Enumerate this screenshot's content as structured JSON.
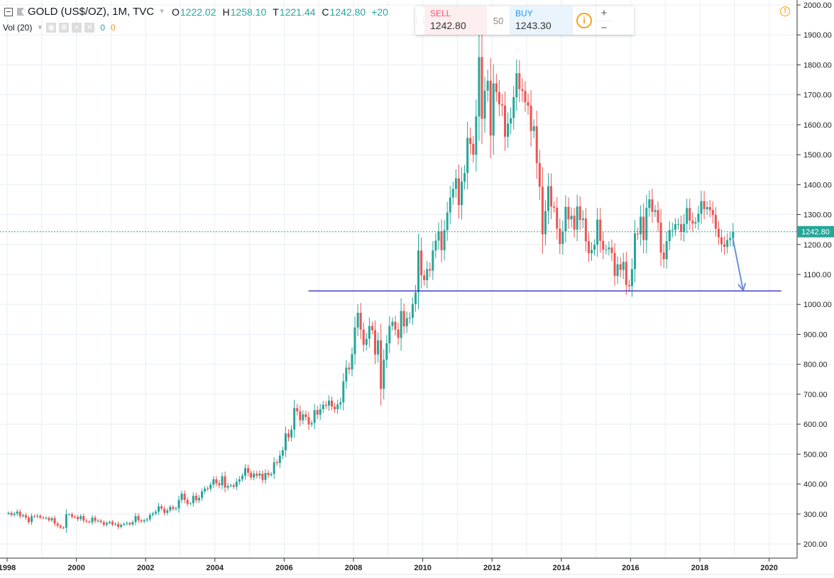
{
  "legend": {
    "symbol": "GOLD (US$/OZ), 1M, TVC",
    "o_label": "O",
    "o": "1222.02",
    "h_label": "H",
    "h": "1258.10",
    "l_label": "T",
    "l": "1221.44",
    "c_label": "C",
    "c": "1242.80",
    "change": "+20"
  },
  "volume": {
    "label": "Vol (20)",
    "v1": "0",
    "v2": "0"
  },
  "trade_panel": {
    "sell_label": "SELL",
    "sell_price": "1242.80",
    "spread": "50",
    "buy_label": "BUY",
    "buy_price": "1243.30",
    "plus": "+",
    "minus": "−",
    "info": "i"
  },
  "alert_icon": "!",
  "colors": {
    "up": "#26a69a",
    "down": "#ef5350",
    "line": "#3f3fcf",
    "arrow": "#6f8fd6",
    "grid": "#e9eef3"
  },
  "chart_data": {
    "type": "candlestick",
    "title": "GOLD (US$/OZ), 1M, TVC",
    "interval": "monthly",
    "start": "1998-01",
    "closes": [
      304,
      297,
      301,
      308,
      293,
      296,
      288,
      273,
      293,
      292,
      294,
      288,
      287,
      287,
      279,
      286,
      268,
      261,
      255,
      254,
      299,
      299,
      291,
      290,
      283,
      293,
      278,
      275,
      272,
      288,
      277,
      278,
      273,
      264,
      270,
      274,
      265,
      267,
      257,
      264,
      267,
      270,
      265,
      273,
      293,
      279,
      275,
      279,
      282,
      297,
      302,
      308,
      326,
      318,
      304,
      312,
      324,
      317,
      319,
      347,
      368,
      347,
      334,
      336,
      361,
      346,
      354,
      375,
      385,
      384,
      398,
      416,
      403,
      396,
      426,
      388,
      394,
      396,
      391,
      408,
      416,
      428,
      453,
      438,
      422,
      435,
      428,
      435,
      414,
      437,
      430,
      434,
      473,
      470,
      495,
      513,
      569,
      556,
      582,
      654,
      643,
      613,
      633,
      624,
      599,
      604,
      647,
      632,
      650,
      665,
      662,
      679,
      659,
      650,
      666,
      673,
      743,
      789,
      783,
      834,
      923,
      972,
      916,
      865,
      885,
      928,
      914,
      833,
      880,
      718,
      815,
      870,
      928,
      942,
      916,
      888,
      978,
      927,
      954,
      955,
      1001,
      1040,
      1180,
      1097,
      1081,
      1118,
      1113,
      1180,
      1213,
      1244,
      1181,
      1248,
      1307,
      1357,
      1386,
      1421,
      1332,
      1410,
      1439,
      1556,
      1536,
      1500,
      1628,
      1826,
      1620,
      1714,
      1747,
      1564,
      1738,
      1709,
      1668,
      1664,
      1560,
      1604,
      1622,
      1692,
      1772,
      1719,
      1713,
      1675,
      1664,
      1579,
      1595,
      1472,
      1393,
      1234,
      1312,
      1395,
      1327,
      1323,
      1253,
      1202,
      1244,
      1326,
      1284,
      1296,
      1250,
      1327,
      1282,
      1287,
      1211,
      1171,
      1182,
      1199,
      1283,
      1212,
      1183,
      1184,
      1190,
      1172,
      1095,
      1134,
      1115,
      1142,
      1065,
      1061,
      1118,
      1237,
      1234,
      1293,
      1215,
      1322,
      1351,
      1309,
      1315,
      1273,
      1173,
      1151,
      1211,
      1248,
      1249,
      1268,
      1268,
      1242,
      1269,
      1322,
      1280,
      1270,
      1275,
      1303,
      1345,
      1318,
      1325,
      1315,
      1299,
      1253,
      1224,
      1201,
      1192,
      1215,
      1222,
      1242.8
    ],
    "last_price": "1242.80",
    "y_ticks": [
      "2000.00",
      "1900.00",
      "1800.00",
      "1700.00",
      "1600.00",
      "1500.00",
      "1400.00",
      "1300.00",
      "1200.00",
      "1100.00",
      "1000.00",
      "900.00",
      "800.00",
      "700.00",
      "600.00",
      "500.00",
      "400.00",
      "300.00",
      "200.00"
    ],
    "x_ticks": [
      "1998",
      "2000",
      "2002",
      "2004",
      "2006",
      "2008",
      "2010",
      "2012",
      "2014",
      "2016",
      "2018",
      "2020"
    ],
    "ylim": [
      200,
      2000
    ],
    "xlim": [
      1997.8,
      2020.75
    ],
    "annotations": {
      "support_line": {
        "price": 1045,
        "from": 2006.7,
        "to": 2020.35
      },
      "arrow": {
        "from": [
          2018.95,
          1222
        ],
        "to": [
          2019.25,
          1047
        ]
      }
    }
  }
}
